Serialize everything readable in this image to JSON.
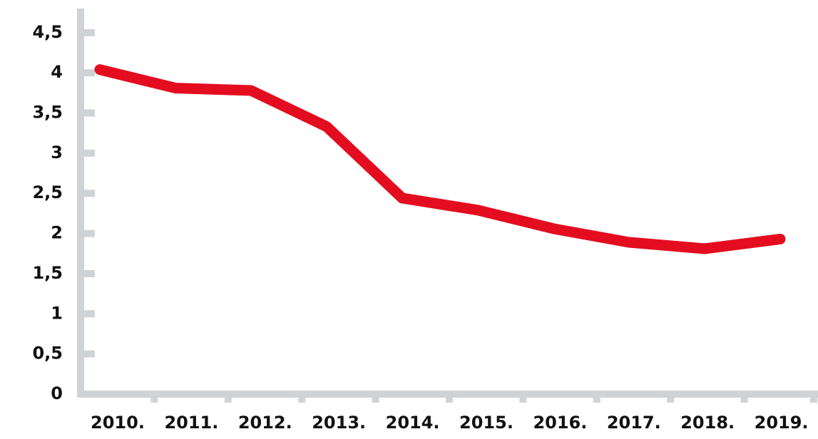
{
  "chart_data": {
    "type": "line",
    "categories": [
      "2010.",
      "2011.",
      "2012.",
      "2013.",
      "2014.",
      "2015.",
      "2016.",
      "2017.",
      "2018.",
      "2019."
    ],
    "series": [
      {
        "color": "#e30d1f",
        "values": [
          4.04,
          3.81,
          3.78,
          3.33,
          2.44,
          2.29,
          2.06,
          1.89,
          1.81,
          1.93
        ]
      }
    ],
    "ylim": [
      0,
      4.8
    ],
    "yticks": [
      0,
      {
        "value": 0.5,
        "label": "0,5"
      },
      1,
      {
        "value": 1.5,
        "label": "1,5"
      },
      2,
      {
        "value": 2.5,
        "label": "2,5"
      },
      3,
      {
        "value": 3.5,
        "label": "3,5"
      },
      4,
      {
        "value": 4.5,
        "label": "4,5"
      }
    ]
  }
}
